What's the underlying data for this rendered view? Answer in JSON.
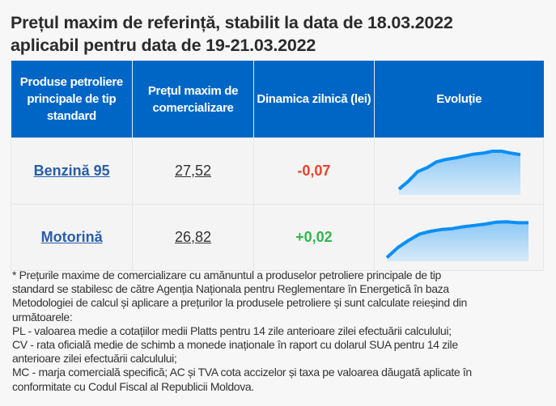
{
  "title_lines": [
    "Prețul maxim de referință, stabilit la data de 18.03.2022",
    "aplicabil pentru data de 19-21.03.2022"
  ],
  "table": {
    "headers": [
      "Produse petroliere principale de tip standard",
      "Prețul maxim de comercializare",
      "Dinamica zilnică (lei)",
      "Evoluție"
    ],
    "rows": [
      {
        "product": "Benzină 95",
        "price": "27,52",
        "change": "-0,07",
        "trend": [
          0.12,
          0.28,
          0.48,
          0.56,
          0.68,
          0.73,
          0.76,
          0.8,
          0.84,
          0.86,
          0.9,
          0.9,
          0.86,
          0.83
        ]
      },
      {
        "product": "Motorină",
        "price": "26,82",
        "change": "+0,02",
        "trend": [
          0.08,
          0.3,
          0.46,
          0.6,
          0.66,
          0.7,
          0.72,
          0.76,
          0.79,
          0.82,
          0.86,
          0.87,
          0.85,
          0.85
        ]
      }
    ]
  },
  "notes": [
    "* Prețurile maxime de comercializare cu amănuntul a produselor petroliere principale de tip",
    "standard se stabilesc de către Agenția Naționala pentru Reglementare în Energetică în baza",
    "Metodologiei de calcul și aplicare a prețurilor la produsele petroliere și sunt calculate reieșind din",
    "următoarele:",
    "PL - valoarea medie a cotațiilor medii Platts pentru 14 zile anterioare zilei efectuării calculului;",
    "CV - rata oficială medie de schimb a monede inaționale în raport cu dolarul SUA pentru 14 zile",
    "anterioare zilei efectuării calculului;",
    "MC - marja comercială specifică; AC și TVA cota accizelor și taxa pe valoarea dăugată aplicate în",
    "conformitate cu Codul Fiscal al Republicii Moldova."
  ],
  "colors": {
    "header": "#0066c6",
    "negative": "#e8412c",
    "positive": "#2fb84a",
    "spark": "#0a8ff5"
  }
}
